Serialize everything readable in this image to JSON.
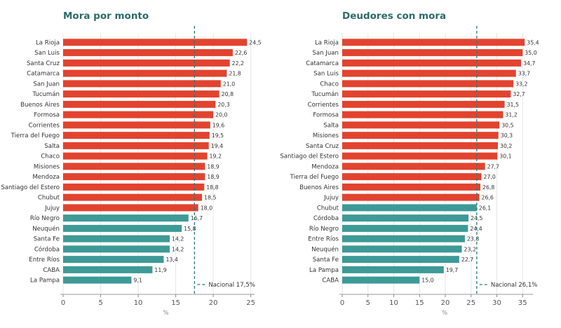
{
  "colors": {
    "above": "#e2432f",
    "below": "#3d9a96",
    "national_line": "#2a7a78",
    "title": "#2d6b6b",
    "grid": "#e6e6e6"
  },
  "chart_data": [
    {
      "type": "bar",
      "orientation": "horizontal",
      "title": "Mora por monto",
      "xlabel": "%",
      "ylabel": "",
      "xlim": [
        0,
        25.5
      ],
      "xticks": [
        "0",
        "5",
        "10",
        "15",
        "20",
        "25"
      ],
      "grid": true,
      "reference_line": {
        "value": 17.5,
        "label": "Nacional 17,5%"
      },
      "categories": [
        "La Rioja",
        "San Luis",
        "Santa Cruz",
        "Catamarca",
        "San Juan",
        "Tucumán",
        "Buenos Aires",
        "Formosa",
        "Corrientes",
        "Tierra del Fuego",
        "Salta",
        "Chaco",
        "Misiones",
        "Mendoza",
        "Santiago del Estero",
        "Chubut",
        "Jujuy",
        "Río Negro",
        "Neuquén",
        "Santa Fe",
        "Córdoba",
        "Entre Ríos",
        "CABA",
        "La Pampa"
      ],
      "values": [
        24.5,
        22.6,
        22.2,
        21.8,
        21.0,
        20.8,
        20.3,
        20.0,
        19.6,
        19.5,
        19.4,
        19.2,
        18.9,
        18.9,
        18.8,
        18.5,
        18.0,
        16.7,
        15.8,
        14.2,
        14.2,
        13.4,
        11.9,
        9.1
      ],
      "value_labels": [
        "24,5",
        "22,6",
        "22,2",
        "21,8",
        "21,0",
        "20,8",
        "20,3",
        "20,0",
        "19,6",
        "19,5",
        "19,4",
        "19,2",
        "18,9",
        "18,9",
        "18,8",
        "18,5",
        "18,0",
        "16,7",
        "15,8",
        "14,2",
        "14,2",
        "13,4",
        "11,9",
        "9,1"
      ]
    },
    {
      "type": "bar",
      "orientation": "horizontal",
      "title": "Deudores con mora",
      "xlabel": "%",
      "ylabel": "",
      "xlim": [
        0,
        37
      ],
      "xticks": [
        "0",
        "5",
        "10",
        "15",
        "20",
        "25",
        "30",
        "35"
      ],
      "grid": true,
      "reference_line": {
        "value": 26.1,
        "label": "Nacional 26,1%"
      },
      "categories": [
        "La Rioja",
        "San Juan",
        "Catamarca",
        "San Luis",
        "Chaco",
        "Tucumán",
        "Corrientes",
        "Formosa",
        "Salta",
        "Misiones",
        "Santa Cruz",
        "Santiago del Estero",
        "Mendoza",
        "Tierra del Fuego",
        "Buenos Aires",
        "Jujuy",
        "Chubut",
        "Córdoba",
        "Río Negro",
        "Entre Ríos",
        "Neuquén",
        "Santa Fe",
        "La Pampa",
        "CABA"
      ],
      "values": [
        35.4,
        35.0,
        34.7,
        33.7,
        33.2,
        32.7,
        31.5,
        31.2,
        30.5,
        30.3,
        30.2,
        30.1,
        27.7,
        27.0,
        26.8,
        26.6,
        26.1,
        24.5,
        24.4,
        23.8,
        23.2,
        22.7,
        19.7,
        15.0
      ],
      "value_labels": [
        "35,4",
        "35,0",
        "34,7",
        "33,7",
        "33,2",
        "32,7",
        "31,5",
        "31,2",
        "30,5",
        "30,3",
        "30,2",
        "30,1",
        "27,7",
        "27,0",
        "26,8",
        "26,6",
        "26,1",
        "24,5",
        "24,4",
        "23,8",
        "23,2",
        "22,7",
        "19,7",
        "15,0"
      ]
    }
  ]
}
